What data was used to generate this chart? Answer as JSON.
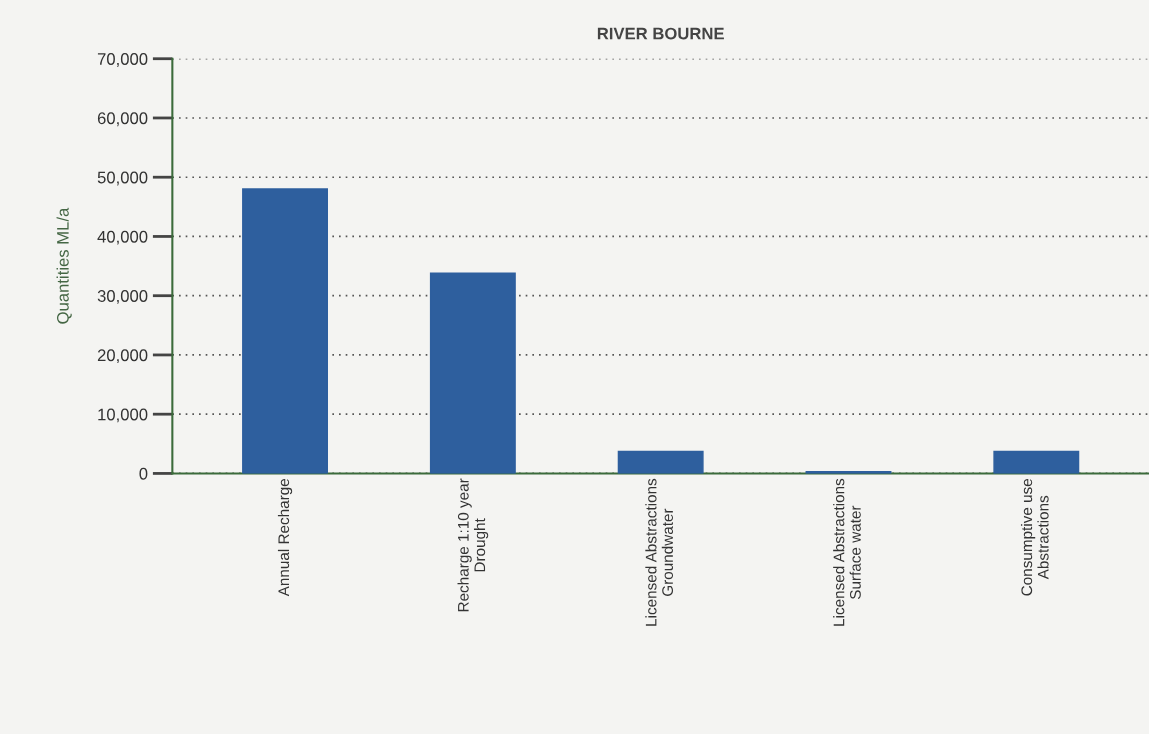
{
  "chart_data": {
    "type": "bar",
    "title": "RIVER BOURNE",
    "ylabel": "Quantities ML/a",
    "categories": [
      "Annual Recharge",
      "Recharge 1:10 year\nDrought",
      "Licensed Abstractions\nGroundwater",
      "Licensed Abstractions\nSurface water",
      "Consumptive use\nAbstractions"
    ],
    "values": [
      48000,
      33800,
      3700,
      300,
      3700
    ],
    "color": "#2e5f9e",
    "ylim": [
      0,
      70000
    ],
    "yticks": [
      {
        "value": 0,
        "label": "0"
      },
      {
        "value": 10000,
        "label": "10,000"
      },
      {
        "value": 20000,
        "label": "20,000"
      },
      {
        "value": 30000,
        "label": "30,000"
      },
      {
        "value": 40000,
        "label": "40,000"
      },
      {
        "value": 50000,
        "label": "50,000"
      },
      {
        "value": 60000,
        "label": "60,000"
      },
      {
        "value": 70000,
        "label": "70,000"
      }
    ],
    "grid": "y"
  }
}
